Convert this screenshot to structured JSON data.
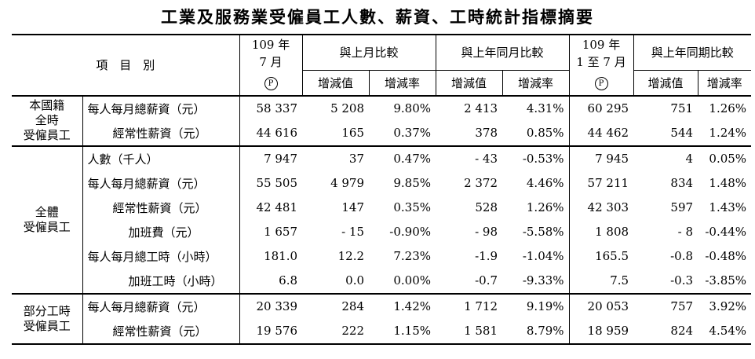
{
  "title": "工業及服務業受僱員工人數、薪資、工時統計指標摘要",
  "header": {
    "item_col": "項　目　別",
    "period1": "109 年 7 月",
    "period1_line1": "109 年",
    "period1_line2": "7 月",
    "period2_line1": "109 年",
    "period2_line2": "1 至 7 月",
    "prelim_mark": "P",
    "mom": "與上月比較",
    "yoy": "與上年同月比較",
    "yoy_cum": "與上年同期比較",
    "change_value": "增減值",
    "change_rate": "增減率"
  },
  "groups": [
    {
      "label_lines": [
        "本國籍",
        "全時",
        "受僱員工"
      ],
      "rows": [
        {
          "item": "每人每月總薪資（元）",
          "indent": 0,
          "v": "58 337",
          "mom_v": "5 208",
          "mom_r": "9.80%",
          "yoy_v": "2 413",
          "yoy_r": "4.31%",
          "cum": "60 295",
          "cum_v": "751",
          "cum_r": "1.26%"
        },
        {
          "item": "經常性薪資（元）",
          "indent": 1,
          "v": "44 616",
          "mom_v": "165",
          "mom_r": "0.37%",
          "yoy_v": "378",
          "yoy_r": "0.85%",
          "cum": "44 462",
          "cum_v": "544",
          "cum_r": "1.24%"
        }
      ]
    },
    {
      "label_lines": [
        "全體",
        "受僱員工"
      ],
      "rows": [
        {
          "item": "人數（千人）",
          "indent": 0,
          "v": "7 947",
          "mom_v": "37",
          "mom_r": "0.47%",
          "yoy_v": "- 43",
          "yoy_r": "-0.53%",
          "cum": "7 945",
          "cum_v": "4",
          "cum_r": "0.05%"
        },
        {
          "item": "每人每月總薪資（元）",
          "indent": 0,
          "v": "55 505",
          "mom_v": "4 979",
          "mom_r": "9.85%",
          "yoy_v": "2 372",
          "yoy_r": "4.46%",
          "cum": "57 211",
          "cum_v": "834",
          "cum_r": "1.48%"
        },
        {
          "item": "經常性薪資（元）",
          "indent": 1,
          "v": "42 481",
          "mom_v": "147",
          "mom_r": "0.35%",
          "yoy_v": "528",
          "yoy_r": "1.26%",
          "cum": "42 303",
          "cum_v": "597",
          "cum_r": "1.43%"
        },
        {
          "item": "加班費（元）",
          "indent": 2,
          "v": "1 657",
          "mom_v": "- 15",
          "mom_r": "-0.90%",
          "yoy_v": "- 98",
          "yoy_r": "-5.58%",
          "cum": "1 808",
          "cum_v": "- 8",
          "cum_r": "-0.44%"
        },
        {
          "item": "每人每月總工時（小時）",
          "indent": 0,
          "v": "181.0",
          "mom_v": "12.2",
          "mom_r": "7.23%",
          "yoy_v": "-1.9",
          "yoy_r": "-1.04%",
          "cum": "165.5",
          "cum_v": "-0.8",
          "cum_r": "-0.48%"
        },
        {
          "item": "加班工時（小時）",
          "indent": 2,
          "v": "6.8",
          "mom_v": "0.0",
          "mom_r": "0.00%",
          "yoy_v": "-0.7",
          "yoy_r": "-9.33%",
          "cum": "7.5",
          "cum_v": "-0.3",
          "cum_r": "-3.85%"
        }
      ]
    },
    {
      "label_lines": [
        "部分工時",
        "受僱員工"
      ],
      "rows": [
        {
          "item": "每人每月總薪資（元）",
          "indent": 0,
          "v": "20 339",
          "mom_v": "284",
          "mom_r": "1.42%",
          "yoy_v": "1 712",
          "yoy_r": "9.19%",
          "cum": "20 053",
          "cum_v": "757",
          "cum_r": "3.92%"
        },
        {
          "item": "經常性薪資（元）",
          "indent": 1,
          "v": "19 576",
          "mom_v": "222",
          "mom_r": "1.15%",
          "yoy_v": "1 581",
          "yoy_r": "8.79%",
          "cum": "18 959",
          "cum_v": "824",
          "cum_r": "4.54%"
        }
      ]
    }
  ]
}
